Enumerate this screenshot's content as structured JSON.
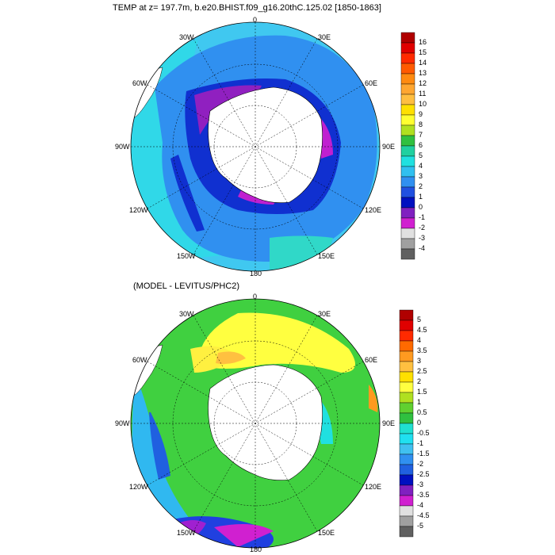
{
  "panel_top": {
    "title": "TEMP at z= 197.7m, b.e20.BHIST.f09_g16.20thC.125.02 [1850-1863]",
    "lon_labels": {
      "l0": "0",
      "l30e": "30E",
      "l60e": "60E",
      "l90e": "90E",
      "l120e": "120E",
      "l150e": "150E",
      "l180": "180",
      "l150w": "150W",
      "l120w": "120W",
      "l90w": "90W",
      "l60w": "60W",
      "l30w": "30W"
    },
    "colorbar": {
      "labels": [
        "16",
        "15",
        "14",
        "13",
        "12",
        "11",
        "10",
        "9",
        "8",
        "7",
        "6",
        "5",
        "4",
        "3",
        "2",
        "1",
        "0",
        "-1",
        "-2",
        "-3",
        "-4"
      ],
      "colors": [
        "#b00000",
        "#e00000",
        "#ff2a00",
        "#ff5a00",
        "#ff8a10",
        "#ffa630",
        "#ffbe40",
        "#ffe000",
        "#ffff30",
        "#b0e020",
        "#30c040",
        "#20d0a0",
        "#20e0e0",
        "#30c0f0",
        "#3090f0",
        "#2050e0",
        "#0010c0",
        "#8020c0",
        "#d020d0",
        "#e0e0e0",
        "#a0a0a0",
        "#606060"
      ]
    }
  },
  "panel_bottom": {
    "title": "(MODEL - LEVITUS/PHC2)",
    "lon_labels": {
      "l0": "0",
      "l30e": "30E",
      "l60e": "60E",
      "l90e": "90E",
      "l120e": "120E",
      "l150e": "150E",
      "l180": "180",
      "l150w": "150W",
      "l120w": "120W",
      "l90w": "90W",
      "l60w": "60W",
      "l30w": "30W"
    },
    "colorbar": {
      "labels": [
        "5",
        "4.5",
        "4",
        "3.5",
        "3",
        "2.5",
        "2",
        "1.5",
        "1",
        "0.5",
        "0",
        "-0.5",
        "-1",
        "-1.5",
        "-2",
        "-2.5",
        "-3",
        "-3.5",
        "-4",
        "-4.5",
        "-5"
      ],
      "colors": [
        "#b00000",
        "#e00000",
        "#ff2a00",
        "#ff6a00",
        "#ff9a20",
        "#ffc040",
        "#ffe000",
        "#ffff40",
        "#b0e020",
        "#60d030",
        "#30c040",
        "#20e0d0",
        "#20e0f0",
        "#40c0f0",
        "#3090f0",
        "#2060e0",
        "#0010c0",
        "#8020c0",
        "#d020d0",
        "#e0e0e0",
        "#a0a0a0",
        "#606060"
      ]
    }
  }
}
